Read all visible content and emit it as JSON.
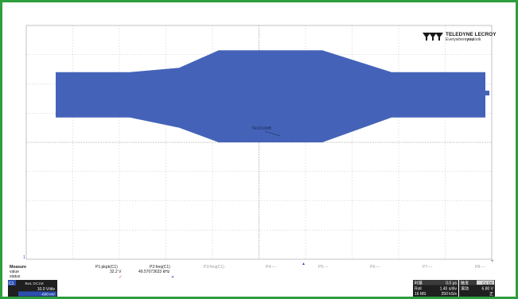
{
  "brand": {
    "logo_icon": "teledyne-lecroy-logo-icon",
    "name": "TELEDYNE LECROY",
    "tagline_pre": "Everywhere",
    "tagline_you": "you",
    "tagline_post": "look"
  },
  "colors": {
    "frame": "#2e9e3e",
    "waveform": "#4463b8",
    "grid": "#b4b4b4",
    "info_bar": "#1f1f1f",
    "channel_badge": "#2c4fb0"
  },
  "waveform_annotation": "TRUDUMB",
  "waveform_envelope_vdiv": [
    {
      "div": 0,
      "high": 2.4,
      "low": 0.85
    },
    {
      "div": 1.5,
      "high": 2.4,
      "low": 0.85
    },
    {
      "div": 2.5,
      "high": 2.55,
      "low": 0.5
    },
    {
      "div": 3.3,
      "high": 3.15,
      "low": 0.0
    },
    {
      "div": 5.4,
      "high": 3.15,
      "low": 0.0
    },
    {
      "div": 6.8,
      "high": 2.4,
      "low": 0.85
    },
    {
      "div": 8.7,
      "high": 2.4,
      "low": 0.85
    }
  ],
  "ground_marker": "1",
  "trigger_marker": "▲",
  "right_marker": "+",
  "measure": {
    "header": "Measure",
    "row_labels": [
      "value",
      "status"
    ],
    "columns": [
      {
        "name": "P1:pkpk(C1)",
        "value": "32.2 V",
        "status": "✓"
      },
      {
        "name": "P2:freq(C1)",
        "value": "49.57073633 kHz",
        "status": "✕"
      },
      {
        "name": "P3:freq(C1)",
        "value": "",
        "status": ""
      },
      {
        "name": "P4:---",
        "value": "",
        "status": ""
      },
      {
        "name": "P5:---",
        "value": "",
        "status": ""
      },
      {
        "name": "P6:---",
        "value": "",
        "status": ""
      },
      {
        "name": "P7:---",
        "value": "",
        "status": ""
      },
      {
        "name": "P8:---",
        "value": "",
        "status": ""
      }
    ]
  },
  "channel": {
    "badge": "C1",
    "coupling": "BwL DC1M",
    "vdiv": "10.0 V/div",
    "offset": "-600 mV"
  },
  "timebase": {
    "label": "时基",
    "value": "0.0 μs",
    "roll_label": "Roll",
    "tdiv": "1.40 s/div",
    "samples": "16 MS",
    "rate": "250 kS/s"
  },
  "trigger": {
    "label": "触发",
    "mode": "C1 DC",
    "roll_label": "滚动",
    "level": "6.80 V",
    "slope": "正"
  }
}
